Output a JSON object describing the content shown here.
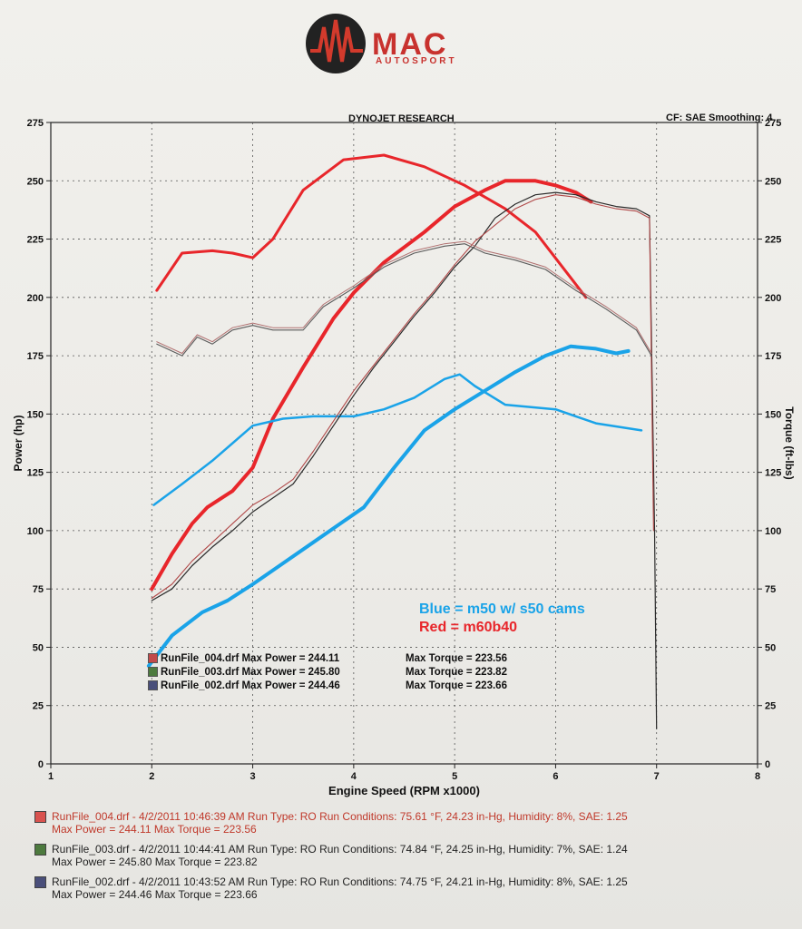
{
  "brand": {
    "name": "MAC",
    "sub": "AUTOSPORT"
  },
  "header": {
    "title": "DYNOJET RESEARCH",
    "settings": "CF: SAE  Smoothing: 4"
  },
  "annotation": {
    "blue": "Blue = m50 w/ s50 cams",
    "red": "Red = m60b40"
  },
  "legend": [
    {
      "name": "RunFile_004.drf Max Power = 244.11",
      "torque": "Max Torque = 223.56",
      "color": "#c24a4a"
    },
    {
      "name": "RunFile_003.drf Max Power = 245.80",
      "torque": "Max Torque = 223.82",
      "color": "#4d7a3e"
    },
    {
      "name": "RunFile_002.drf Max Power = 244.46",
      "torque": "Max Torque = 223.66",
      "color": "#4a4f7a"
    }
  ],
  "runs": [
    {
      "line1": "RunFile_004.drf - 4/2/2011 10:46:39 AM  Run Type: RO  Run Conditions: 75.61 °F, 24.23 in-Hg,  Humidity:  8%, SAE: 1.25",
      "line2": "Max Power = 244.11  Max Torque = 223.56",
      "color": "#c0392b"
    },
    {
      "line1": "RunFile_003.drf - 4/2/2011 10:44:41 AM  Run Type: RO  Run Conditions: 74.84 °F, 24.25 in-Hg,  Humidity:  7%, SAE: 1.24",
      "line2": "Max Power = 245.80  Max Torque = 223.82",
      "color": "#222222"
    },
    {
      "line1": "RunFile_002.drf - 4/2/2011 10:43:52 AM  Run Type: RO  Run Conditions: 74.75 °F, 24.21 in-Hg,  Humidity:  8%, SAE: 1.25",
      "line2": "Max Power = 244.46  Max Torque = 223.66",
      "color": "#222222"
    }
  ],
  "chart_data": {
    "type": "line",
    "xlabel": "Engine Speed (RPM x1000)",
    "ylabel": "Power (hp)",
    "y2label": "Torque (ft-lbs)",
    "xlim": [
      1,
      8
    ],
    "ylim": [
      0,
      275
    ],
    "x_ticks": [
      1,
      2,
      3,
      4,
      5,
      6,
      7,
      8
    ],
    "y_ticks": [
      0,
      25,
      50,
      75,
      100,
      125,
      150,
      175,
      200,
      225,
      250,
      275
    ],
    "grid": true,
    "series": [
      {
        "name": "Red = m60b40",
        "kind": "power",
        "color": "#e8262b",
        "width": 4,
        "x": [
          2.0,
          2.2,
          2.4,
          2.55,
          2.8,
          3.0,
          3.2,
          3.5,
          3.8,
          4.0,
          4.3,
          4.7,
          5.0,
          5.3,
          5.5,
          5.8,
          6.0,
          6.2,
          6.35
        ],
        "y": [
          75,
          90,
          103,
          110,
          117,
          127,
          148,
          170,
          191,
          202,
          215,
          228,
          239,
          246,
          250,
          250,
          248,
          245,
          241
        ]
      },
      {
        "name": "Red = m60b40",
        "kind": "torque",
        "color": "#e8262b",
        "width": 3,
        "x": [
          2.05,
          2.3,
          2.6,
          2.8,
          3.0,
          3.2,
          3.5,
          3.9,
          4.3,
          4.7,
          5.1,
          5.5,
          5.8,
          6.05,
          6.3
        ],
        "y": [
          203,
          219,
          220,
          219,
          217,
          225,
          246,
          259,
          261,
          256,
          248,
          238,
          228,
          214,
          200
        ]
      },
      {
        "name": "Blue = m50 w/ s50 cams",
        "kind": "power",
        "color": "#1aa3e8",
        "width": 4,
        "x": [
          1.97,
          2.2,
          2.5,
          2.75,
          3.0,
          3.3,
          3.6,
          3.9,
          4.1,
          4.4,
          4.7,
          5.0,
          5.3,
          5.6,
          5.9,
          6.15,
          6.4,
          6.6,
          6.72
        ],
        "y": [
          42,
          55,
          65,
          70,
          77,
          86,
          95,
          104,
          110,
          127,
          143,
          152,
          160,
          168,
          175,
          179,
          178,
          176,
          177
        ]
      },
      {
        "name": "Blue = m50 w/ s50 cams",
        "kind": "torque",
        "color": "#1aa3e8",
        "width": 2.5,
        "x": [
          2.02,
          2.3,
          2.6,
          3.0,
          3.3,
          3.6,
          4.0,
          4.3,
          4.6,
          4.9,
          5.05,
          5.2,
          5.5,
          6.0,
          6.4,
          6.85
        ],
        "y": [
          111,
          120,
          130,
          145,
          148,
          149,
          149,
          152,
          157,
          165,
          167,
          162,
          154,
          152,
          146,
          143
        ]
      },
      {
        "name": "RunFile_003.drf",
        "kind": "power",
        "color": "#2a2a2a",
        "width": 1.2,
        "x": [
          2.0,
          2.2,
          2.4,
          2.6,
          2.8,
          3.0,
          3.2,
          3.4,
          3.6,
          3.8,
          4.0,
          4.2,
          4.4,
          4.6,
          4.8,
          5.0,
          5.2,
          5.4,
          5.6,
          5.8,
          6.0,
          6.2,
          6.4,
          6.6,
          6.8,
          6.93,
          6.98,
          7.0
        ],
        "y": [
          70,
          75,
          85,
          93,
          100,
          108,
          114,
          120,
          132,
          145,
          158,
          170,
          181,
          192,
          202,
          213,
          222,
          234,
          240,
          244,
          245,
          244,
          241,
          239,
          238,
          235,
          100,
          15
        ]
      },
      {
        "name": "RunFile_004.drf",
        "kind": "power",
        "color": "#b04848",
        "width": 1.1,
        "x": [
          2.0,
          2.2,
          2.4,
          2.6,
          2.8,
          3.0,
          3.2,
          3.4,
          3.6,
          3.8,
          4.0,
          4.2,
          4.4,
          4.6,
          4.8,
          5.0,
          5.2,
          5.4,
          5.6,
          5.8,
          6.0,
          6.2,
          6.4,
          6.6,
          6.8,
          6.93,
          6.97
        ],
        "y": [
          71,
          77,
          87,
          95,
          103,
          111,
          116,
          122,
          134,
          147,
          160,
          171,
          182,
          193,
          203,
          214,
          224,
          231,
          238,
          242,
          244,
          243,
          240,
          238,
          237,
          234,
          100
        ]
      },
      {
        "name": "RunFile_003.drf",
        "kind": "torque",
        "color": "#5a5a5a",
        "width": 1.1,
        "x": [
          2.05,
          2.3,
          2.45,
          2.6,
          2.8,
          3.0,
          3.2,
          3.5,
          3.7,
          4.0,
          4.3,
          4.6,
          4.9,
          5.1,
          5.3,
          5.6,
          5.9,
          6.2,
          6.5,
          6.8,
          6.95
        ],
        "y": [
          180,
          175,
          183,
          180,
          186,
          188,
          186,
          186,
          196,
          204,
          213,
          219,
          222,
          223,
          219,
          216,
          212,
          203,
          195,
          186,
          175
        ]
      },
      {
        "name": "RunFile_002.drf",
        "kind": "torque",
        "color": "#b07070",
        "width": 1.0,
        "x": [
          2.05,
          2.3,
          2.45,
          2.6,
          2.8,
          3.0,
          3.2,
          3.5,
          3.7,
          4.0,
          4.3,
          4.6,
          4.9,
          5.1,
          5.3,
          5.6,
          5.9,
          6.2,
          6.5,
          6.8,
          6.95
        ],
        "y": [
          181,
          176,
          184,
          181,
          187,
          189,
          187,
          187,
          197,
          205,
          214,
          220,
          223,
          224,
          220,
          217,
          213,
          204,
          196,
          187,
          176
        ]
      }
    ]
  }
}
